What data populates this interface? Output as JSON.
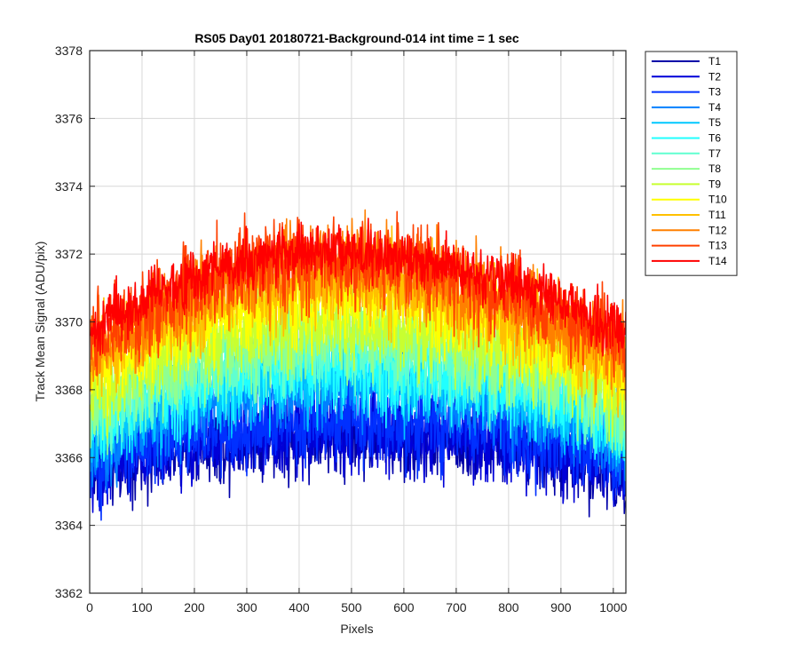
{
  "chart_data": {
    "type": "line",
    "title": "RS05 Day01 20180721-Background-014 int time = 1 sec",
    "xlabel": "Pixels",
    "ylabel": "Track Mean Signal (ADU/pix)",
    "xlim": [
      0,
      1024
    ],
    "ylim": [
      3362,
      3378
    ],
    "xticks": [
      0,
      100,
      200,
      300,
      400,
      500,
      600,
      700,
      800,
      900,
      1000
    ],
    "yticks": [
      3362,
      3364,
      3366,
      3368,
      3370,
      3372,
      3374,
      3376,
      3378
    ],
    "grid": true,
    "legend_position": "outside top-right",
    "x_samples": [
      0,
      64,
      128,
      192,
      256,
      320,
      384,
      448,
      512,
      576,
      640,
      704,
      768,
      832,
      896,
      960,
      1024
    ],
    "series": [
      {
        "name": "T1",
        "color": "#0000a8",
        "noise": 1.1,
        "values": [
          3365.5,
          3365.9,
          3366.2,
          3366.4,
          3366.5,
          3366.6,
          3366.6,
          3366.7,
          3366.7,
          3366.7,
          3366.6,
          3366.5,
          3366.4,
          3366.3,
          3366.1,
          3365.8,
          3365.4
        ]
      },
      {
        "name": "T2",
        "color": "#0000d8",
        "noise": 1.1,
        "values": [
          3365.6,
          3366.0,
          3366.3,
          3366.5,
          3366.6,
          3366.7,
          3366.8,
          3366.8,
          3366.8,
          3366.8,
          3366.7,
          3366.6,
          3366.5,
          3366.4,
          3366.2,
          3365.9,
          3365.5
        ]
      },
      {
        "name": "T3",
        "color": "#0030ff",
        "noise": 1.1,
        "values": [
          3365.8,
          3366.2,
          3366.5,
          3366.8,
          3366.9,
          3367.0,
          3367.1,
          3367.1,
          3367.1,
          3367.1,
          3367.0,
          3366.9,
          3366.8,
          3366.6,
          3366.4,
          3366.1,
          3365.7
        ]
      },
      {
        "name": "T4",
        "color": "#0080ff",
        "noise": 1.1,
        "values": [
          3366.3,
          3366.8,
          3367.2,
          3367.5,
          3367.7,
          3367.9,
          3368.0,
          3368.0,
          3368.0,
          3368.0,
          3367.9,
          3367.8,
          3367.6,
          3367.4,
          3367.1,
          3366.8,
          3366.3
        ]
      },
      {
        "name": "T5",
        "color": "#00c8ff",
        "noise": 1.1,
        "values": [
          3366.6,
          3367.1,
          3367.5,
          3367.8,
          3368.0,
          3368.2,
          3368.3,
          3368.4,
          3368.4,
          3368.3,
          3368.2,
          3368.1,
          3367.9,
          3367.7,
          3367.4,
          3367.0,
          3366.6
        ]
      },
      {
        "name": "T6",
        "color": "#20ffff",
        "noise": 1.1,
        "values": [
          3366.9,
          3367.4,
          3367.8,
          3368.1,
          3368.4,
          3368.5,
          3368.6,
          3368.7,
          3368.7,
          3368.6,
          3368.5,
          3368.4,
          3368.2,
          3368.0,
          3367.7,
          3367.3,
          3366.8
        ]
      },
      {
        "name": "T7",
        "color": "#60ffd0",
        "noise": 1.1,
        "values": [
          3367.2,
          3367.7,
          3368.1,
          3368.5,
          3368.7,
          3368.9,
          3369.0,
          3369.1,
          3369.1,
          3369.0,
          3368.9,
          3368.7,
          3368.5,
          3368.3,
          3368.0,
          3367.6,
          3367.1
        ]
      },
      {
        "name": "T8",
        "color": "#90ff90",
        "noise": 1.1,
        "values": [
          3367.5,
          3368.0,
          3368.5,
          3368.8,
          3369.1,
          3369.3,
          3369.4,
          3369.5,
          3369.5,
          3369.4,
          3369.3,
          3369.1,
          3368.9,
          3368.6,
          3368.3,
          3367.9,
          3367.4
        ]
      },
      {
        "name": "T9",
        "color": "#c8ff30",
        "noise": 1.1,
        "values": [
          3367.9,
          3368.4,
          3368.9,
          3369.3,
          3369.6,
          3369.8,
          3369.9,
          3370.0,
          3370.0,
          3369.9,
          3369.8,
          3369.6,
          3369.3,
          3369.0,
          3368.7,
          3368.3,
          3367.8
        ]
      },
      {
        "name": "T10",
        "color": "#ffff00",
        "noise": 1.1,
        "values": [
          3368.4,
          3369.0,
          3369.5,
          3369.9,
          3370.2,
          3370.4,
          3370.6,
          3370.7,
          3370.7,
          3370.6,
          3370.4,
          3370.2,
          3369.9,
          3369.6,
          3369.2,
          3368.8,
          3368.3
        ]
      },
      {
        "name": "T11",
        "color": "#ffc000",
        "noise": 1.1,
        "values": [
          3368.8,
          3369.4,
          3369.9,
          3370.3,
          3370.7,
          3370.9,
          3371.1,
          3371.2,
          3371.2,
          3371.1,
          3370.9,
          3370.6,
          3370.3,
          3370.0,
          3369.6,
          3369.2,
          3368.7
        ]
      },
      {
        "name": "T12",
        "color": "#ff8000",
        "noise": 1.1,
        "values": [
          3369.1,
          3369.7,
          3370.3,
          3370.7,
          3371.1,
          3371.3,
          3371.5,
          3371.6,
          3371.6,
          3371.5,
          3371.3,
          3371.0,
          3370.7,
          3370.4,
          3370.0,
          3369.6,
          3369.0
        ]
      },
      {
        "name": "T13",
        "color": "#ff4000",
        "noise": 1.1,
        "values": [
          3369.3,
          3369.9,
          3370.5,
          3371.0,
          3371.4,
          3371.6,
          3371.8,
          3371.9,
          3371.9,
          3371.8,
          3371.6,
          3371.3,
          3371.0,
          3370.7,
          3370.3,
          3369.8,
          3369.3
        ]
      },
      {
        "name": "T14",
        "color": "#ff0000",
        "noise": 0.75,
        "values": [
          3369.6,
          3370.3,
          3370.9,
          3371.3,
          3371.6,
          3371.9,
          3372.0,
          3372.1,
          3372.1,
          3372.0,
          3371.8,
          3371.6,
          3371.3,
          3371.0,
          3370.6,
          3370.1,
          3369.6
        ]
      }
    ]
  }
}
